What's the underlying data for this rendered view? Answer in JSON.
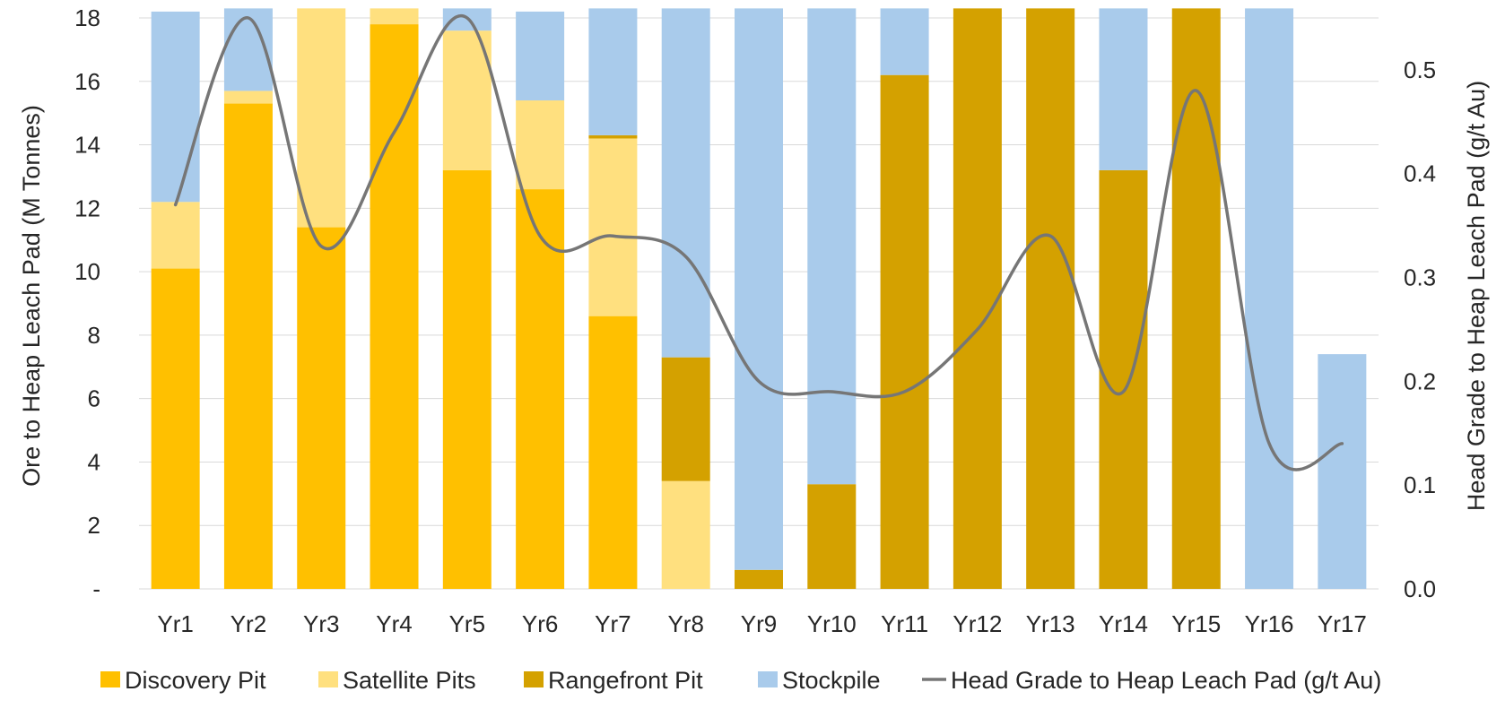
{
  "chart_data": {
    "type": "bar",
    "stacked": true,
    "categories": [
      "Yr1",
      "Yr2",
      "Yr3",
      "Yr4",
      "Yr5",
      "Yr6",
      "Yr7",
      "Yr8",
      "Yr9",
      "Yr10",
      "Yr11",
      "Yr12",
      "Yr13",
      "Yr14",
      "Yr15",
      "Yr16",
      "Yr17"
    ],
    "series": [
      {
        "name": "Discovery Pit",
        "color": "#FFC000",
        "values": [
          10.1,
          15.3,
          11.4,
          17.8,
          13.2,
          12.6,
          8.6,
          0,
          0,
          0,
          0,
          0,
          0,
          0,
          0,
          0,
          0
        ]
      },
      {
        "name": "Satellite Pits",
        "color": "#FFE07F",
        "values": [
          2.1,
          0.4,
          6.9,
          0.5,
          4.4,
          2.8,
          5.6,
          3.4,
          0,
          0,
          0,
          0,
          0,
          0,
          0,
          0,
          0
        ]
      },
      {
        "name": "Rangefront Pit",
        "color": "#D4A100",
        "values": [
          0,
          0,
          0,
          0,
          0,
          0,
          0.1,
          3.9,
          0.6,
          3.3,
          16.2,
          18.3,
          18.3,
          13.2,
          18.3,
          0,
          0
        ]
      },
      {
        "name": "Stockpile",
        "color": "#A9CBEB",
        "values": [
          6.0,
          2.6,
          0,
          0,
          0.7,
          2.8,
          4.0,
          11.0,
          17.7,
          15.0,
          2.1,
          0,
          0,
          5.1,
          0,
          18.3,
          7.4
        ]
      }
    ],
    "line": {
      "name": "Head Grade to Heap Leach Pad (g/t Au)",
      "color": "#767676",
      "axis": "right",
      "values": [
        0.37,
        0.55,
        0.33,
        0.44,
        0.55,
        0.34,
        0.34,
        0.32,
        0.2,
        0.19,
        0.19,
        0.25,
        0.34,
        0.19,
        0.48,
        0.14,
        0.14
      ]
    },
    "ylabel": "Ore to Heap Leach Pad (M Tonnes)",
    "y2label": "Head Grade to Heap Leach Pad (g/t Au)",
    "ylim": [
      0,
      18
    ],
    "y2lim": [
      0,
      0.55
    ],
    "yticks": [
      "-",
      "2",
      "4",
      "6",
      "8",
      "10",
      "12",
      "14",
      "16",
      "18"
    ],
    "y2ticks": [
      "0.0",
      "0.1",
      "0.2",
      "0.3",
      "0.4",
      "0.5"
    ],
    "grid": true,
    "legend_position": "bottom"
  }
}
